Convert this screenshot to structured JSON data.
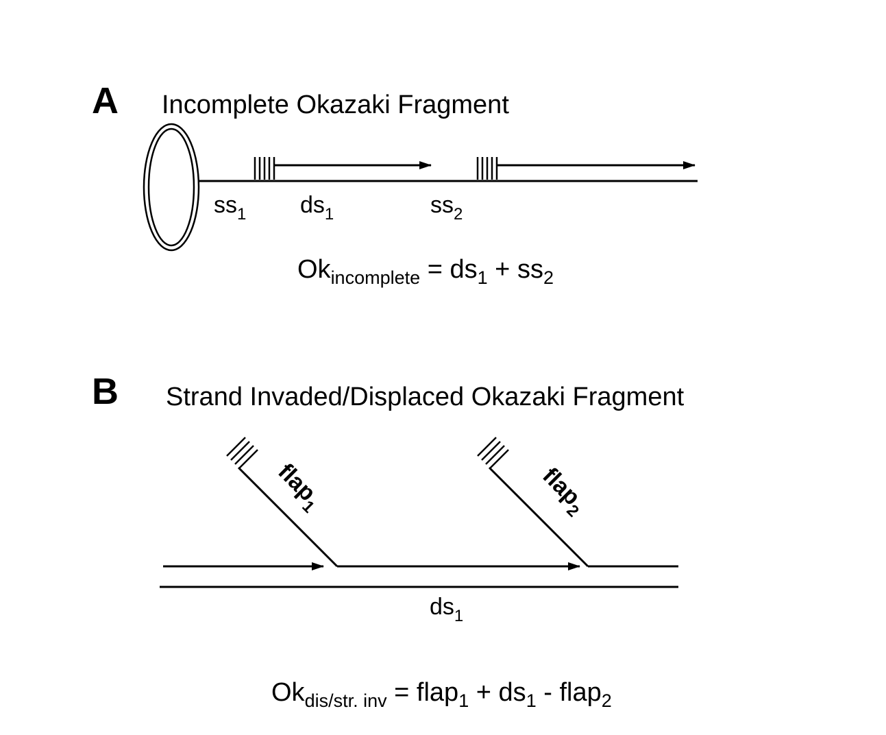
{
  "panel_a": {
    "letter": "A",
    "title": "Incomplete Okazaki Fragment",
    "labels": {
      "ss1": {
        "base": "ss",
        "sub": "1"
      },
      "ds1": {
        "base": "ds",
        "sub": "1"
      },
      "ss2": {
        "base": "ss",
        "sub": "2"
      }
    },
    "equation": {
      "lhs_base": "Ok",
      "lhs_sub": "incomplete",
      "eq": " = ",
      "t1_base": "ds",
      "t1_sub": "1",
      "op": " + ",
      "t2_base": "ss",
      "t2_sub": "2"
    }
  },
  "panel_b": {
    "letter": "B",
    "title": "Strand Invaded/Displaced Okazaki Fragment",
    "flap1": {
      "base": "flap",
      "sub": "1"
    },
    "flap2": {
      "base": "flap",
      "sub": "2"
    },
    "ds1": {
      "base": "ds",
      "sub": "1"
    },
    "equation": {
      "lhs_base": "Ok",
      "lhs_sub": "dis/str. inv",
      "eq": " = ",
      "t1_base": "flap",
      "t1_sub": "1",
      "op1": " + ",
      "t2_base": "ds",
      "t2_sub": "1",
      "op2": " - ",
      "t3_base": "flap",
      "t3_sub": "2"
    }
  },
  "colors": {
    "ink": "#000000",
    "background": "#ffffff"
  }
}
